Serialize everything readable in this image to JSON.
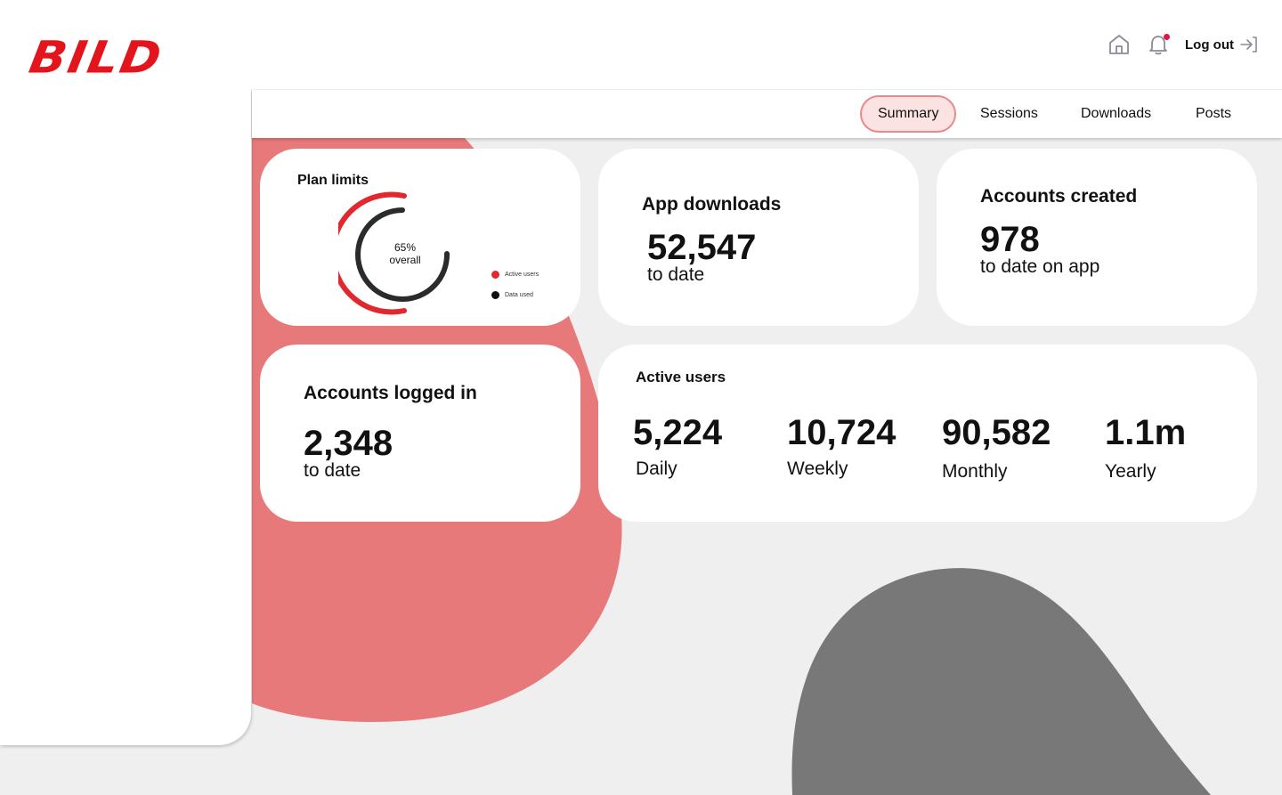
{
  "brand": {
    "logo_text": "BILD",
    "accent": "#e3141b"
  },
  "header": {
    "home_icon": "home-icon",
    "bell_icon": "bell-icon",
    "logout_label": "Log out",
    "logout_icon": "logout-arrow-icon"
  },
  "nav": {
    "tabs": [
      {
        "label": "Summary",
        "active": true
      },
      {
        "label": "Sessions",
        "active": false
      },
      {
        "label": "Downloads",
        "active": false
      },
      {
        "label": "Posts",
        "active": false
      }
    ]
  },
  "plan_limits": {
    "title": "Plan limits",
    "center_value": "65%",
    "center_label": "overall",
    "legend": [
      {
        "label": "Active users",
        "color": "#e0282e"
      },
      {
        "label": "Data used",
        "color": "#111111"
      }
    ]
  },
  "app_downloads": {
    "title": "App downloads",
    "value": "52,547",
    "caption": "to date"
  },
  "accounts_created": {
    "title": "Accounts created",
    "value": "978",
    "caption": "to date on app"
  },
  "accounts_logged_in": {
    "title": "Accounts logged in",
    "value": "2,348",
    "caption": "to date"
  },
  "active_users": {
    "title": "Active users",
    "stats": [
      {
        "value": "5,224",
        "label": "Daily"
      },
      {
        "value": "10,724",
        "label": "Weekly"
      },
      {
        "value": "90,582",
        "label": "Monthly"
      },
      {
        "value": "1.1m",
        "label": "Yearly"
      }
    ]
  },
  "colors": {
    "blob_red": "#e8797a",
    "blob_gray": "#787878",
    "background": "#efefef"
  }
}
